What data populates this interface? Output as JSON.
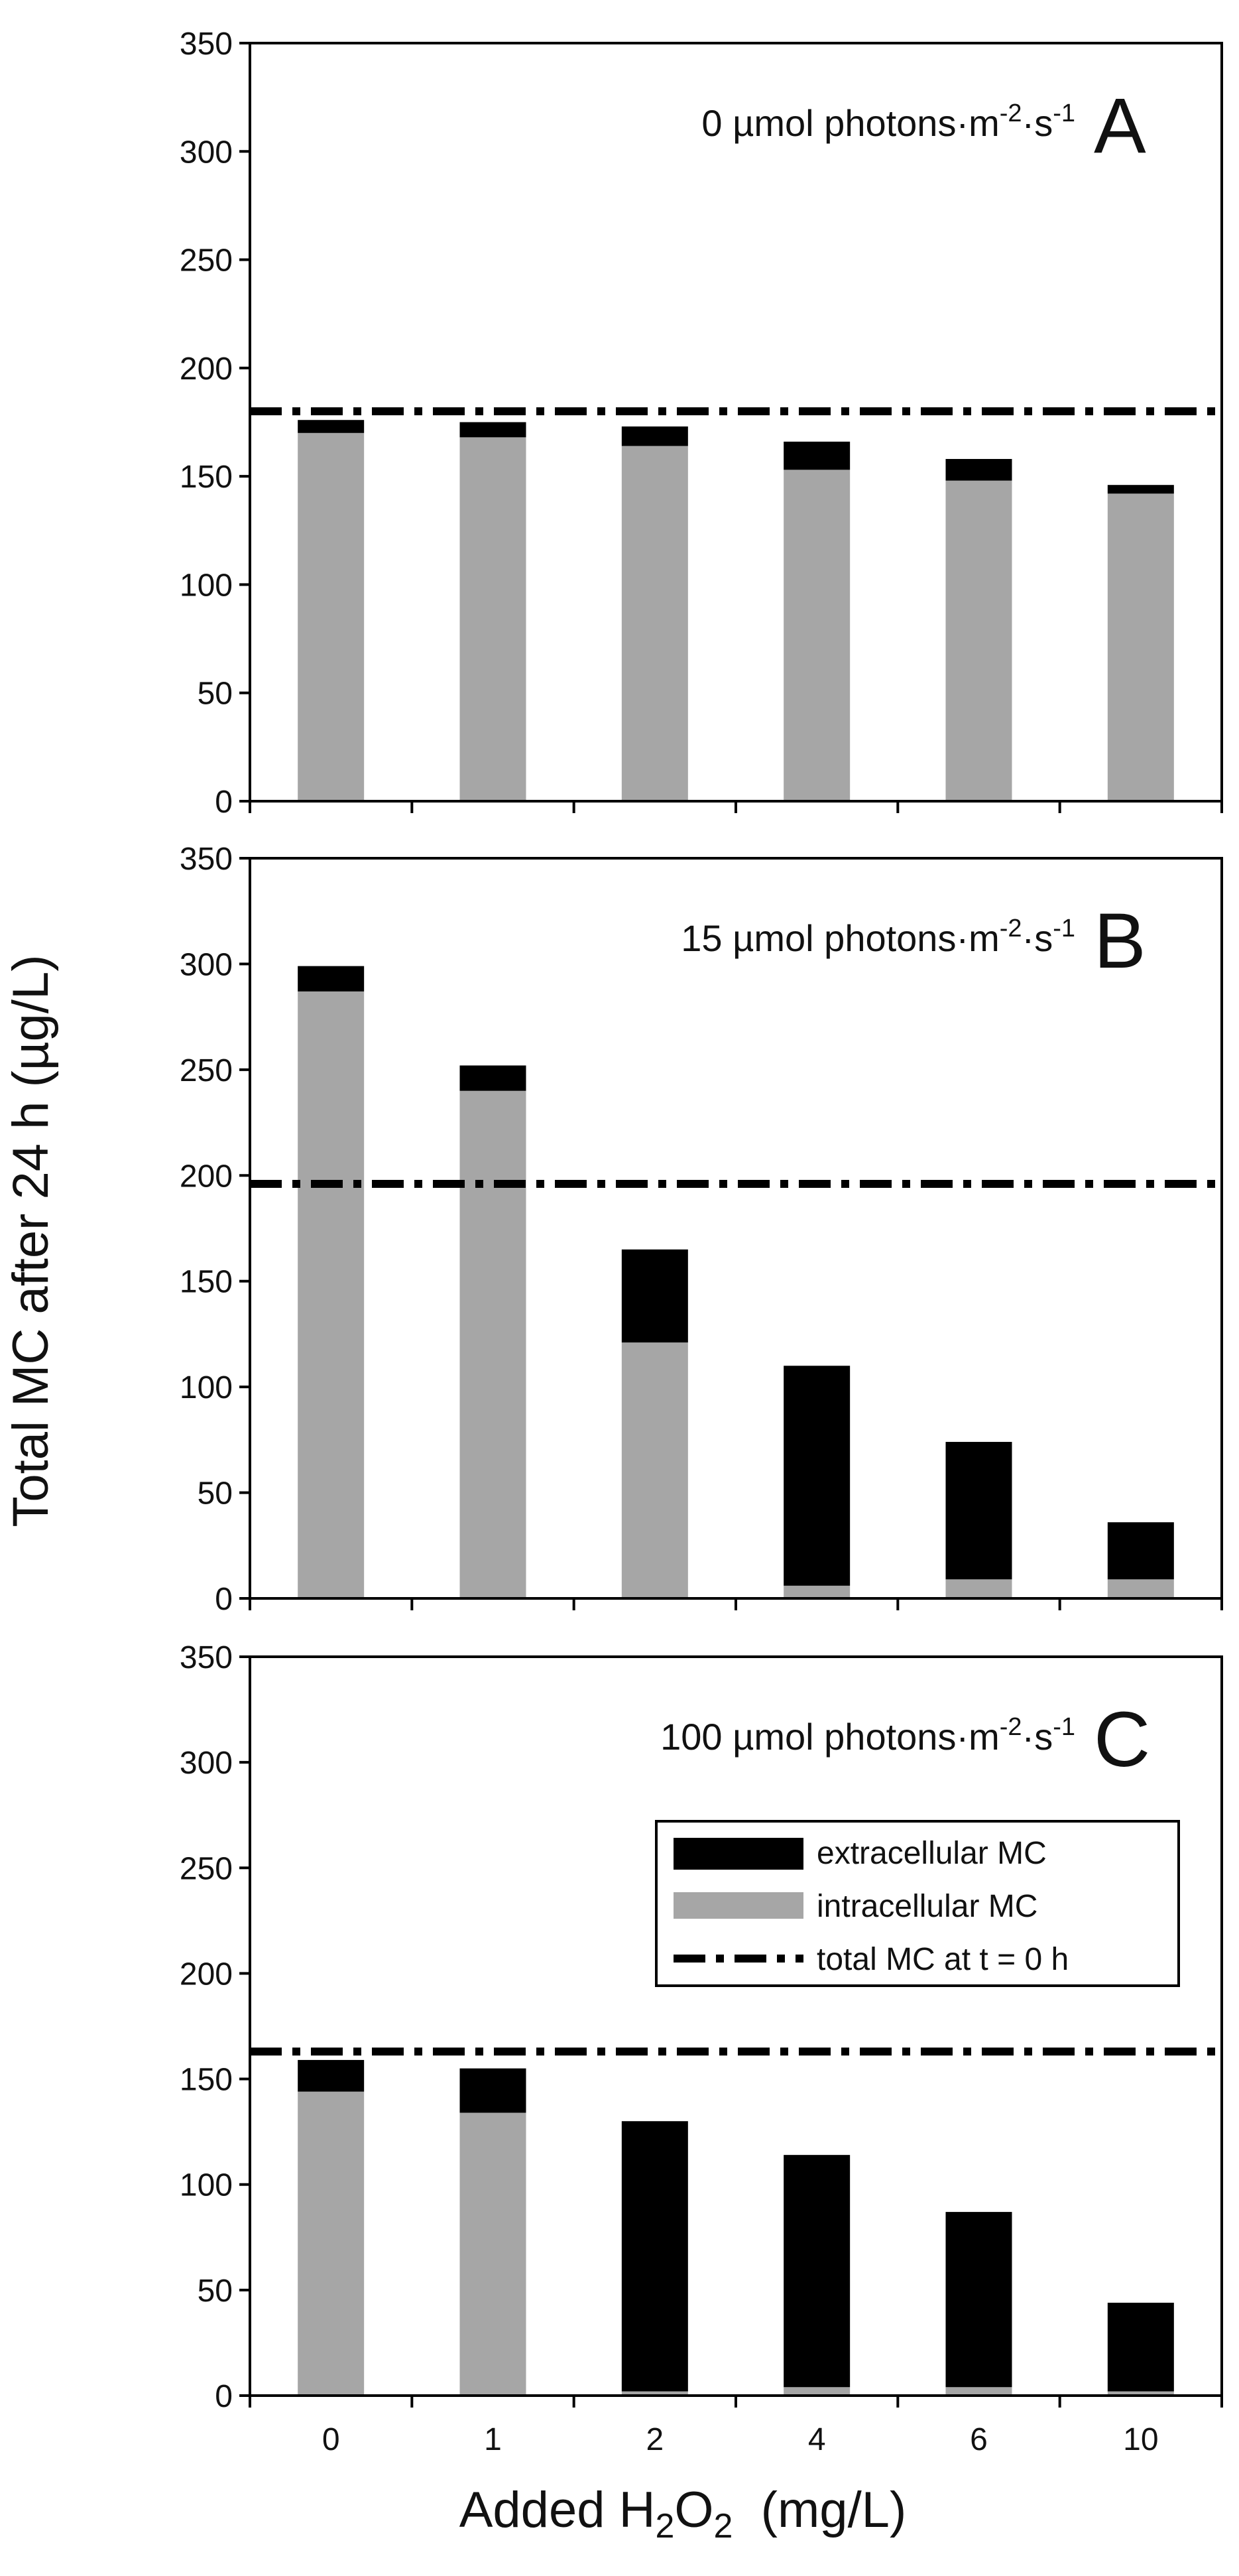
{
  "figure": {
    "ylabel": "Total MC after 24 h (µg/L)",
    "xlabel": {
      "pre": "Added H",
      "sub1": "2",
      "mid": "O",
      "sub2": "2",
      "post": "  (mg/L)"
    }
  },
  "colors": {
    "extracellular": "#000000",
    "intracellular": "#a6a6a6",
    "reference_line": "#000000",
    "frame": "#000000"
  },
  "legend": {
    "placement": "panel C, upper right",
    "items": [
      {
        "key": "extracellular",
        "label": "extracellular MC",
        "kind": "bar"
      },
      {
        "key": "intracellular",
        "label": "intracellular MC",
        "kind": "bar"
      },
      {
        "key": "reference",
        "label": "total MC at t = 0 h",
        "kind": "dash-dot line"
      }
    ]
  },
  "chart_data": [
    {
      "type": "bar",
      "stacked": true,
      "panel_letter": "A",
      "light_text": {
        "pre": "0 µmol photons·m",
        "sup1": "-2",
        "mid": "·s",
        "sup2": "-1"
      },
      "categories": [
        "0",
        "1",
        "2",
        "4",
        "6",
        "10"
      ],
      "series": [
        {
          "name": "intracellular MC",
          "values": [
            170,
            168,
            164,
            153,
            148,
            142
          ]
        },
        {
          "name": "extracellular MC",
          "values": [
            6,
            7,
            9,
            13,
            10,
            4
          ]
        }
      ],
      "reference_line": {
        "name": "total MC at t = 0 h",
        "value": 180
      },
      "ylim": [
        0,
        350
      ],
      "yticks": [
        0,
        50,
        100,
        150,
        200,
        250,
        300,
        350
      ]
    },
    {
      "type": "bar",
      "stacked": true,
      "panel_letter": "B",
      "light_text": {
        "pre": "15 µmol photons·m",
        "sup1": "-2",
        "mid": "·s",
        "sup2": "-1"
      },
      "categories": [
        "0",
        "1",
        "2",
        "4",
        "6",
        "10"
      ],
      "series": [
        {
          "name": "intracellular MC",
          "values": [
            287,
            240,
            121,
            6,
            9,
            9
          ]
        },
        {
          "name": "extracellular MC",
          "values": [
            12,
            12,
            44,
            104,
            65,
            27
          ]
        }
      ],
      "reference_line": {
        "name": "total MC at t = 0 h",
        "value": 196
      },
      "ylim": [
        0,
        350
      ],
      "yticks": [
        0,
        50,
        100,
        150,
        200,
        250,
        300,
        350
      ]
    },
    {
      "type": "bar",
      "stacked": true,
      "panel_letter": "C",
      "light_text": {
        "pre": "100 µmol photons·m",
        "sup1": "-2",
        "mid": "·s",
        "sup2": "-1"
      },
      "categories": [
        "0",
        "1",
        "2",
        "4",
        "6",
        "10"
      ],
      "series": [
        {
          "name": "intracellular MC",
          "values": [
            144,
            134,
            2,
            4,
            4,
            2
          ]
        },
        {
          "name": "extracellular MC",
          "values": [
            15,
            21,
            128,
            110,
            83,
            42
          ]
        }
      ],
      "reference_line": {
        "name": "total MC at t = 0 h",
        "value": 163
      },
      "ylim": [
        0,
        350
      ],
      "yticks": [
        0,
        50,
        100,
        150,
        200,
        250,
        300,
        350
      ]
    }
  ]
}
